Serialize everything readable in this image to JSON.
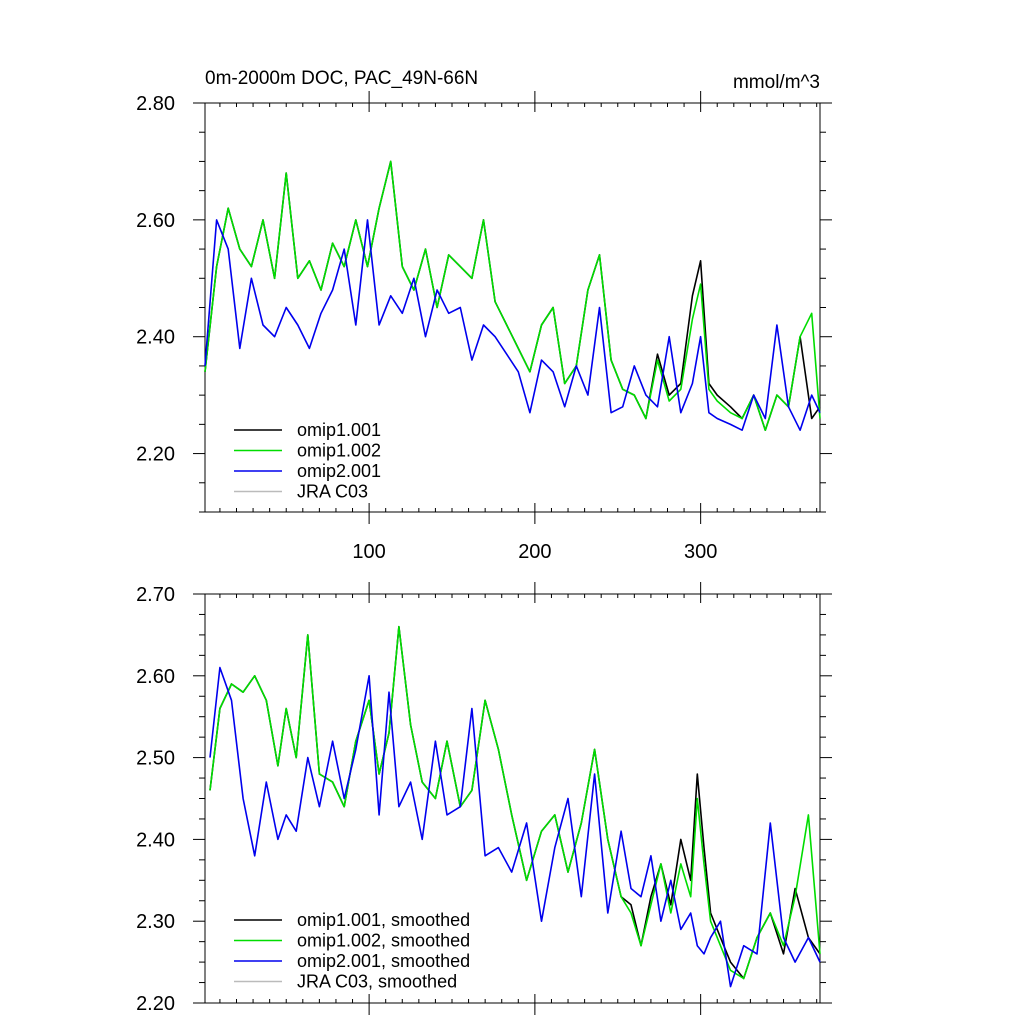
{
  "figure": {
    "title_left": "0m-2000m DOC, PAC_49N-66N",
    "title_right": "mmol/m^3"
  },
  "chart_data": [
    {
      "type": "line",
      "panel": "top",
      "title": "0m-2000m DOC, PAC_49N-66N",
      "units": "mmol/m^3",
      "xlim": [
        1,
        372
      ],
      "ylim": [
        2.1,
        2.8
      ],
      "x_tick_labels": [
        "100",
        "200",
        "300"
      ],
      "y_tick_labels": [
        "2.20",
        "2.40",
        "2.60",
        "2.80"
      ],
      "legend": [
        "omip1.001",
        "omip1.002",
        "omip2.001",
        "JRA C03"
      ],
      "legend_position": "bottom-left",
      "series": [
        {
          "name": "omip1.001",
          "color": "#000000",
          "x": [
            1,
            8,
            15,
            22,
            29,
            36,
            43,
            50,
            57,
            64,
            71,
            78,
            85,
            92,
            99,
            106,
            113,
            120,
            127,
            134,
            141,
            148,
            155,
            162,
            169,
            176,
            183,
            190,
            197,
            204,
            211,
            218,
            225,
            232,
            239,
            246,
            253,
            260,
            267,
            274,
            281,
            288,
            295,
            300,
            305,
            310,
            318,
            325,
            332,
            339,
            346,
            353,
            360,
            367,
            372
          ],
          "values": [
            2.34,
            2.52,
            2.62,
            2.55,
            2.52,
            2.6,
            2.5,
            2.68,
            2.5,
            2.53,
            2.48,
            2.56,
            2.52,
            2.6,
            2.52,
            2.62,
            2.7,
            2.52,
            2.48,
            2.55,
            2.45,
            2.54,
            2.52,
            2.5,
            2.6,
            2.46,
            2.42,
            2.38,
            2.34,
            2.42,
            2.45,
            2.32,
            2.35,
            2.48,
            2.54,
            2.36,
            2.31,
            2.3,
            2.26,
            2.37,
            2.3,
            2.32,
            2.47,
            2.53,
            2.32,
            2.3,
            2.28,
            2.26,
            2.3,
            2.24,
            2.3,
            2.28,
            2.4,
            2.26,
            2.28
          ]
        },
        {
          "name": "omip1.002",
          "color": "#00dd00",
          "x": [
            1,
            8,
            15,
            22,
            29,
            36,
            43,
            50,
            57,
            64,
            71,
            78,
            85,
            92,
            99,
            106,
            113,
            120,
            127,
            134,
            141,
            148,
            155,
            162,
            169,
            176,
            183,
            190,
            197,
            204,
            211,
            218,
            225,
            232,
            239,
            246,
            253,
            260,
            267,
            274,
            281,
            288,
            295,
            300,
            305,
            310,
            318,
            325,
            332,
            339,
            346,
            353,
            360,
            367,
            372
          ],
          "values": [
            2.34,
            2.52,
            2.62,
            2.55,
            2.52,
            2.6,
            2.5,
            2.68,
            2.5,
            2.53,
            2.48,
            2.56,
            2.52,
            2.6,
            2.52,
            2.62,
            2.7,
            2.52,
            2.48,
            2.55,
            2.45,
            2.54,
            2.52,
            2.5,
            2.6,
            2.46,
            2.42,
            2.38,
            2.34,
            2.42,
            2.45,
            2.32,
            2.35,
            2.48,
            2.54,
            2.36,
            2.31,
            2.3,
            2.26,
            2.36,
            2.29,
            2.31,
            2.43,
            2.49,
            2.31,
            2.29,
            2.27,
            2.26,
            2.3,
            2.24,
            2.3,
            2.28,
            2.4,
            2.44,
            2.26
          ]
        },
        {
          "name": "omip2.001",
          "color": "#0000ee",
          "x": [
            1,
            8,
            15,
            22,
            29,
            36,
            43,
            50,
            57,
            64,
            71,
            78,
            85,
            92,
            99,
            106,
            113,
            120,
            127,
            134,
            141,
            148,
            155,
            162,
            169,
            176,
            183,
            190,
            197,
            204,
            211,
            218,
            225,
            232,
            239,
            246,
            253,
            260,
            267,
            274,
            281,
            288,
            295,
            300,
            305,
            310,
            318,
            325,
            332,
            339,
            346,
            353,
            360,
            367,
            372
          ],
          "values": [
            2.35,
            2.6,
            2.55,
            2.38,
            2.5,
            2.42,
            2.4,
            2.45,
            2.42,
            2.38,
            2.44,
            2.48,
            2.55,
            2.42,
            2.6,
            2.42,
            2.47,
            2.44,
            2.5,
            2.4,
            2.48,
            2.44,
            2.45,
            2.36,
            2.42,
            2.4,
            2.37,
            2.34,
            2.27,
            2.36,
            2.34,
            2.28,
            2.35,
            2.3,
            2.45,
            2.27,
            2.28,
            2.35,
            2.3,
            2.28,
            2.4,
            2.27,
            2.32,
            2.4,
            2.27,
            2.26,
            2.25,
            2.24,
            2.3,
            2.26,
            2.42,
            2.28,
            2.24,
            2.3,
            2.27
          ]
        },
        {
          "name": "JRA C03",
          "color": "#bbbbbb",
          "x": [],
          "values": []
        }
      ]
    },
    {
      "type": "line",
      "panel": "bottom",
      "xlim": [
        1,
        372
      ],
      "ylim": [
        2.2,
        2.7
      ],
      "y_tick_labels": [
        "2.20",
        "2.30",
        "2.40",
        "2.50",
        "2.60",
        "2.70"
      ],
      "legend": [
        "omip1.001, smoothed",
        "omip1.002, smoothed",
        "omip2.001, smoothed",
        "JRA C03, smoothed"
      ],
      "legend_position": "bottom-left",
      "series": [
        {
          "name": "omip1.001, smoothed",
          "color": "#000000",
          "x": [
            4,
            10,
            17,
            24,
            31,
            38,
            45,
            50,
            56,
            63,
            70,
            78,
            85,
            92,
            100,
            106,
            112,
            118,
            125,
            132,
            140,
            147,
            155,
            162,
            170,
            178,
            186,
            195,
            204,
            212,
            220,
            228,
            236,
            244,
            252,
            258,
            264,
            270,
            276,
            282,
            288,
            294,
            298,
            302,
            306,
            312,
            318,
            326,
            334,
            342,
            350,
            357,
            365,
            372
          ],
          "values": [
            2.46,
            2.56,
            2.59,
            2.58,
            2.6,
            2.57,
            2.49,
            2.56,
            2.5,
            2.65,
            2.48,
            2.47,
            2.44,
            2.52,
            2.57,
            2.48,
            2.53,
            2.66,
            2.54,
            2.47,
            2.45,
            2.52,
            2.44,
            2.46,
            2.57,
            2.51,
            2.43,
            2.35,
            2.41,
            2.43,
            2.36,
            2.42,
            2.51,
            2.4,
            2.33,
            2.32,
            2.27,
            2.33,
            2.37,
            2.32,
            2.4,
            2.35,
            2.48,
            2.39,
            2.31,
            2.28,
            2.25,
            2.23,
            2.28,
            2.31,
            2.26,
            2.34,
            2.28,
            2.26
          ]
        },
        {
          "name": "omip1.002, smoothed",
          "color": "#00dd00",
          "x": [
            4,
            10,
            17,
            24,
            31,
            38,
            45,
            50,
            56,
            63,
            70,
            78,
            85,
            92,
            100,
            106,
            112,
            118,
            125,
            132,
            140,
            147,
            155,
            162,
            170,
            178,
            186,
            195,
            204,
            212,
            220,
            228,
            236,
            244,
            252,
            258,
            264,
            270,
            276,
            282,
            288,
            294,
            298,
            302,
            306,
            312,
            318,
            326,
            334,
            342,
            350,
            357,
            365,
            372
          ],
          "values": [
            2.46,
            2.56,
            2.59,
            2.58,
            2.6,
            2.57,
            2.49,
            2.56,
            2.5,
            2.65,
            2.48,
            2.47,
            2.44,
            2.52,
            2.57,
            2.48,
            2.53,
            2.66,
            2.54,
            2.47,
            2.45,
            2.52,
            2.44,
            2.46,
            2.57,
            2.51,
            2.43,
            2.35,
            2.41,
            2.43,
            2.36,
            2.42,
            2.51,
            2.4,
            2.33,
            2.31,
            2.27,
            2.32,
            2.37,
            2.31,
            2.37,
            2.33,
            2.45,
            2.37,
            2.3,
            2.27,
            2.24,
            2.23,
            2.28,
            2.31,
            2.27,
            2.33,
            2.43,
            2.26
          ]
        },
        {
          "name": "omip2.001, smoothed",
          "color": "#0000ee",
          "x": [
            4,
            10,
            17,
            24,
            31,
            38,
            45,
            50,
            56,
            63,
            70,
            78,
            85,
            92,
            100,
            106,
            112,
            118,
            125,
            132,
            140,
            147,
            155,
            162,
            170,
            178,
            186,
            195,
            204,
            212,
            220,
            228,
            236,
            244,
            252,
            258,
            264,
            270,
            276,
            282,
            288,
            294,
            298,
            302,
            306,
            312,
            318,
            326,
            334,
            342,
            350,
            357,
            365,
            372
          ],
          "values": [
            2.5,
            2.61,
            2.57,
            2.45,
            2.38,
            2.47,
            2.4,
            2.43,
            2.41,
            2.5,
            2.44,
            2.52,
            2.45,
            2.51,
            2.6,
            2.43,
            2.58,
            2.44,
            2.47,
            2.4,
            2.52,
            2.43,
            2.44,
            2.56,
            2.38,
            2.39,
            2.36,
            2.42,
            2.3,
            2.39,
            2.45,
            2.33,
            2.48,
            2.31,
            2.41,
            2.34,
            2.33,
            2.38,
            2.3,
            2.35,
            2.29,
            2.31,
            2.27,
            2.26,
            2.28,
            2.3,
            2.22,
            2.27,
            2.26,
            2.42,
            2.28,
            2.25,
            2.28,
            2.25
          ]
        },
        {
          "name": "JRA C03, smoothed",
          "color": "#bbbbbb",
          "x": [],
          "values": []
        }
      ]
    }
  ]
}
